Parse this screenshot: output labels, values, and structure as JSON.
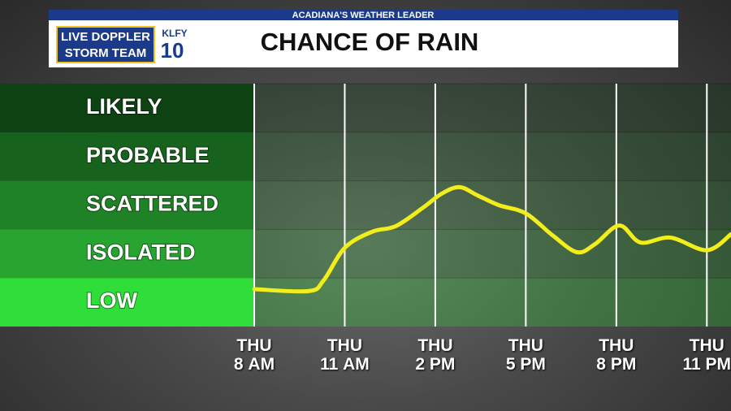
{
  "header": {
    "banner": "ACADIANA'S WEATHER LEADER",
    "logo_lines": [
      "LIVE DOPPLER",
      "STORM TEAM"
    ],
    "station": "KLFY",
    "channel": "10"
  },
  "chart_data": {
    "type": "line",
    "title": "CHANCE OF RAIN",
    "x": [
      8,
      9.8,
      10.3,
      11,
      11.9,
      12.7,
      13.6,
      14.2,
      14.8,
      15.4,
      16.1,
      17,
      17.9,
      18.7,
      19.3,
      20.1,
      20.8,
      21.8,
      23,
      23.8
    ],
    "series": [
      {
        "name": "Chance of rain",
        "color": "#f2ee1c",
        "values": [
          0.77,
          0.73,
          0.95,
          1.62,
          1.95,
          2.07,
          2.45,
          2.73,
          2.87,
          2.7,
          2.5,
          2.33,
          1.87,
          1.53,
          1.7,
          2.08,
          1.73,
          1.83,
          1.57,
          1.9
        ]
      }
    ],
    "xlim": [
      8,
      23.8
    ],
    "xticks": [
      {
        "value": 8,
        "label": "THU 8 AM"
      },
      {
        "value": 11,
        "label": "THU 11 AM"
      },
      {
        "value": 14,
        "label": "THU 2 PM"
      },
      {
        "value": 17,
        "label": "THU 5 PM"
      },
      {
        "value": 20,
        "label": "THU 8 PM"
      },
      {
        "value": 23,
        "label": "THU 11 PM"
      }
    ],
    "ylim": [
      0,
      5
    ],
    "yticks": [
      {
        "value": 0.5,
        "label": "LOW"
      },
      {
        "value": 1.5,
        "label": "ISOLATED"
      },
      {
        "value": 2.5,
        "label": "SCATTERED"
      },
      {
        "value": 3.5,
        "label": "PROBABLE"
      },
      {
        "value": 4.5,
        "label": "LIKELY"
      }
    ],
    "band_colors": [
      "#2fde39",
      "#28a530",
      "#1f8226",
      "#17631d",
      "#0d4213"
    ],
    "grid": true
  }
}
